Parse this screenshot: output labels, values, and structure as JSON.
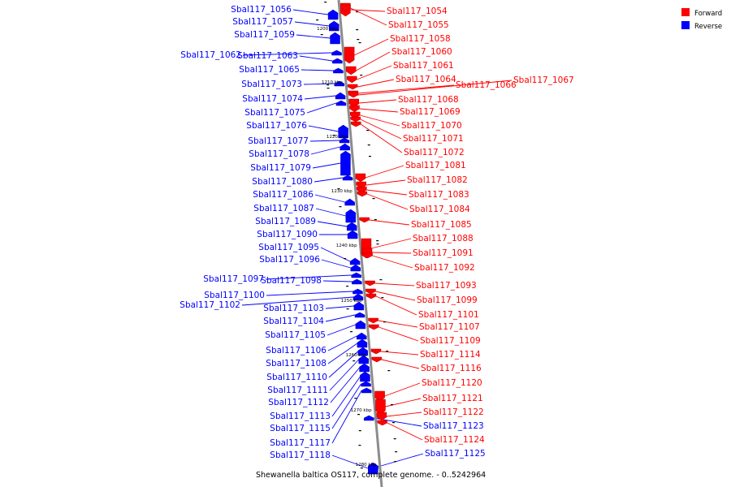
{
  "caption": "Shewanella baltica OS117, complete genome. - 0..5242964",
  "legend": [
    {
      "label": "Forward",
      "color": "#ff0000"
    },
    {
      "label": "Reverse",
      "color": "#0000ff"
    }
  ],
  "colors": {
    "forward": "#ff0000",
    "reverse": "#0000ff",
    "backbone": "#8a8a8a"
  },
  "ticks": [
    "1200 kbp",
    "1210 kbp",
    "1220 kbp",
    "1230 kbp",
    "1240 kbp",
    "1250 kbp",
    "1260 kbp",
    "1270 kbp",
    "1280 kbp"
  ],
  "reverse_genes": [
    "Sbal117_1056",
    "Sbal117_1057",
    "Sbal117_1059",
    "Sbal117_1062",
    "Sbal117_1063",
    "Sbal117_1065",
    "Sbal117_1073",
    "Sbal117_1074",
    "Sbal117_1075",
    "Sbal117_1076",
    "Sbal117_1077",
    "Sbal117_1078",
    "Sbal117_1079",
    "Sbal117_1080",
    "Sbal117_1086",
    "Sbal117_1087",
    "Sbal117_1089",
    "Sbal117_1090",
    "Sbal117_1095",
    "Sbal117_1096",
    "Sbal117_1097",
    "Sbal117_1098",
    "Sbal117_1100",
    "Sbal117_1102",
    "Sbal117_1103",
    "Sbal117_1104",
    "Sbal117_1105",
    "Sbal117_1106",
    "Sbal117_1108",
    "Sbal117_1110",
    "Sbal117_1111",
    "Sbal117_1112",
    "Sbal117_1113",
    "Sbal117_1115",
    "Sbal117_1117",
    "Sbal117_1118",
    "Sbal117_1123",
    "Sbal117_1125"
  ],
  "forward_genes": [
    "Sbal117_1054",
    "Sbal117_1055",
    "Sbal117_1058",
    "Sbal117_1060",
    "Sbal117_1061",
    "Sbal117_1064",
    "Sbal117_1066",
    "Sbal117_1067",
    "Sbal117_1068",
    "Sbal117_1069",
    "Sbal117_1070",
    "Sbal117_1071",
    "Sbal117_1072",
    "Sbal117_1081",
    "Sbal117_1082",
    "Sbal117_1083",
    "Sbal117_1084",
    "Sbal117_1085",
    "Sbal117_1088",
    "Sbal117_1091",
    "Sbal117_1092",
    "Sbal117_1093",
    "Sbal117_1099",
    "Sbal117_1101",
    "Sbal117_1107",
    "Sbal117_1109",
    "Sbal117_1114",
    "Sbal117_1116",
    "Sbal117_1120",
    "Sbal117_1121",
    "Sbal117_1122",
    "Sbal117_1124"
  ]
}
